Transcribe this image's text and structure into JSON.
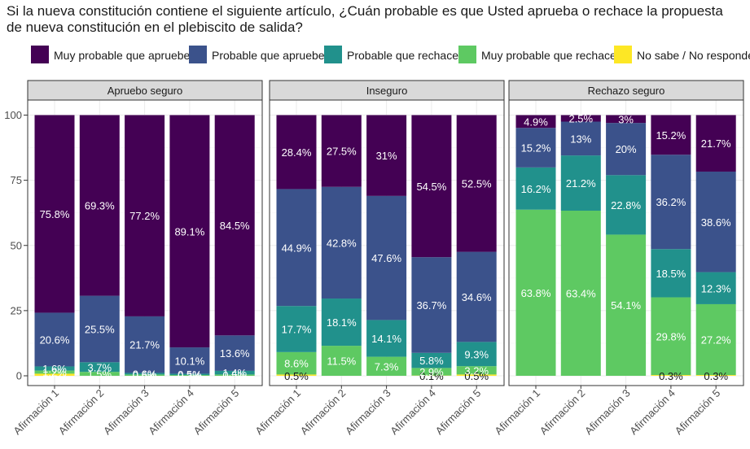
{
  "title": "Si la nueva constitución contiene el siguiente artículo, ¿Cuán probable es que Usted aprueba o rechace la propuesta de nueva constitución en el plebiscito de salida?",
  "chart_data": {
    "type": "bar",
    "stacked": true,
    "ylim": [
      0,
      100
    ],
    "y_ticks": [
      0,
      25,
      50,
      75,
      100
    ],
    "categories": [
      "Afirmación 1",
      "Afirmación 2",
      "Afirmación 3",
      "Afirmación 4",
      "Afirmación 5"
    ],
    "legend": {
      "placement": "top",
      "entries": [
        {
          "key": "muy_aprueba",
          "label": "Muy probable que apruebe",
          "color": "#440154"
        },
        {
          "key": "prob_aprueba",
          "label": "Probable que apruebe",
          "color": "#3b528b"
        },
        {
          "key": "prob_rechace",
          "label": "Probable que rechace",
          "color": "#21918c"
        },
        {
          "key": "muy_rechace",
          "label": "Muy probable que rechace",
          "color": "#5ec962"
        },
        {
          "key": "no_sabe",
          "label": "No sabe / No responde",
          "color": "#fde725"
        }
      ]
    },
    "panels": [
      {
        "name": "Apruebo seguro",
        "bars": [
          {
            "muy_aprueba": 75.8,
            "prob_aprueba": 20.6,
            "prob_rechace": 1.6,
            "muy_rechace": 1.2,
            "no_sabe": 0.8
          },
          {
            "muy_aprueba": 69.3,
            "prob_aprueba": 25.5,
            "prob_rechace": 3.7,
            "muy_rechace": 1.5,
            "no_sabe": 0
          },
          {
            "muy_aprueba": 77.2,
            "prob_aprueba": 21.7,
            "prob_rechace": 0.6,
            "muy_rechace": 0.5,
            "no_sabe": 0
          },
          {
            "muy_aprueba": 89.1,
            "prob_aprueba": 10.1,
            "prob_rechace": 0.5,
            "muy_rechace": 0.3,
            "no_sabe": 0
          },
          {
            "muy_aprueba": 84.5,
            "prob_aprueba": 13.6,
            "prob_rechace": 1.4,
            "muy_rechace": 0.5,
            "no_sabe": 0
          }
        ],
        "labels": [
          {
            "muy_aprueba": "75.8%",
            "prob_aprueba": "20.6%",
            "prob_rechace": "1.6%",
            "muy_rechace": "1.2%"
          },
          {
            "muy_aprueba": "69.3%",
            "prob_aprueba": "25.5%",
            "prob_rechace": "3.7%",
            "muy_rechace": "1.5%"
          },
          {
            "muy_aprueba": "77.2%",
            "prob_aprueba": "21.7%",
            "prob_rechace": "0.6%",
            "muy_rechace": "0.5%"
          },
          {
            "muy_aprueba": "89.1%",
            "prob_aprueba": "10.1%",
            "prob_rechace": "0.5%",
            "muy_rechace": "0.3%"
          },
          {
            "muy_aprueba": "84.5%",
            "prob_aprueba": "13.6%",
            "prob_rechace": "1.4%",
            "muy_rechace": "0.5%"
          }
        ]
      },
      {
        "name": "Inseguro",
        "bars": [
          {
            "muy_aprueba": 28.4,
            "prob_aprueba": 44.9,
            "prob_rechace": 17.7,
            "muy_rechace": 8.6,
            "no_sabe": 0.5
          },
          {
            "muy_aprueba": 27.5,
            "prob_aprueba": 42.8,
            "prob_rechace": 18.1,
            "muy_rechace": 11.5,
            "no_sabe": 0
          },
          {
            "muy_aprueba": 31,
            "prob_aprueba": 47.6,
            "prob_rechace": 14.1,
            "muy_rechace": 7.3,
            "no_sabe": 0
          },
          {
            "muy_aprueba": 54.5,
            "prob_aprueba": 36.7,
            "prob_rechace": 5.8,
            "muy_rechace": 2.9,
            "no_sabe": 0.1
          },
          {
            "muy_aprueba": 52.5,
            "prob_aprueba": 34.6,
            "prob_rechace": 9.3,
            "muy_rechace": 3.2,
            "no_sabe": 0.5
          }
        ],
        "labels": [
          {
            "muy_aprueba": "28.4%",
            "prob_aprueba": "44.9%",
            "prob_rechace": "17.7%",
            "muy_rechace": "8.6%",
            "no_sabe": "0.5%"
          },
          {
            "muy_aprueba": "27.5%",
            "prob_aprueba": "42.8%",
            "prob_rechace": "18.1%",
            "muy_rechace": "11.5%"
          },
          {
            "muy_aprueba": "31%",
            "prob_aprueba": "47.6%",
            "prob_rechace": "14.1%",
            "muy_rechace": "7.3%"
          },
          {
            "muy_aprueba": "54.5%",
            "prob_aprueba": "36.7%",
            "prob_rechace": "5.8%",
            "muy_rechace": "2.9%",
            "no_sabe": "0.1%"
          },
          {
            "muy_aprueba": "52.5%",
            "prob_aprueba": "34.6%",
            "prob_rechace": "9.3%",
            "muy_rechace": "3.2%",
            "no_sabe": "0.5%"
          }
        ]
      },
      {
        "name": "Rechazo seguro",
        "bars": [
          {
            "muy_aprueba": 4.9,
            "prob_aprueba": 15.2,
            "prob_rechace": 16.2,
            "muy_rechace": 63.8,
            "no_sabe": 0
          },
          {
            "muy_aprueba": 2.5,
            "prob_aprueba": 13,
            "prob_rechace": 21.2,
            "muy_rechace": 63.4,
            "no_sabe": 0
          },
          {
            "muy_aprueba": 3,
            "prob_aprueba": 20,
            "prob_rechace": 22.8,
            "muy_rechace": 54.1,
            "no_sabe": 0
          },
          {
            "muy_aprueba": 15.2,
            "prob_aprueba": 36.2,
            "prob_rechace": 18.5,
            "muy_rechace": 29.8,
            "no_sabe": 0.3
          },
          {
            "muy_aprueba": 21.7,
            "prob_aprueba": 38.6,
            "prob_rechace": 12.3,
            "muy_rechace": 27.2,
            "no_sabe": 0.3
          }
        ],
        "labels": [
          {
            "muy_aprueba": "4.9%",
            "prob_aprueba": "15.2%",
            "prob_rechace": "16.2%",
            "muy_rechace": "63.8%"
          },
          {
            "muy_aprueba": "2.5%",
            "prob_aprueba": "13%",
            "prob_rechace": "21.2%",
            "muy_rechace": "63.4%"
          },
          {
            "muy_aprueba": "3%",
            "prob_aprueba": "20%",
            "prob_rechace": "22.8%",
            "muy_rechace": "54.1%"
          },
          {
            "muy_aprueba": "15.2%",
            "prob_aprueba": "36.2%",
            "prob_rechace": "18.5%",
            "muy_rechace": "29.8%",
            "no_sabe": "0.3%"
          },
          {
            "muy_aprueba": "21.7%",
            "prob_aprueba": "38.6%",
            "prob_rechace": "12.3%",
            "muy_rechace": "27.2%",
            "no_sabe": "0.3%"
          }
        ]
      }
    ]
  }
}
